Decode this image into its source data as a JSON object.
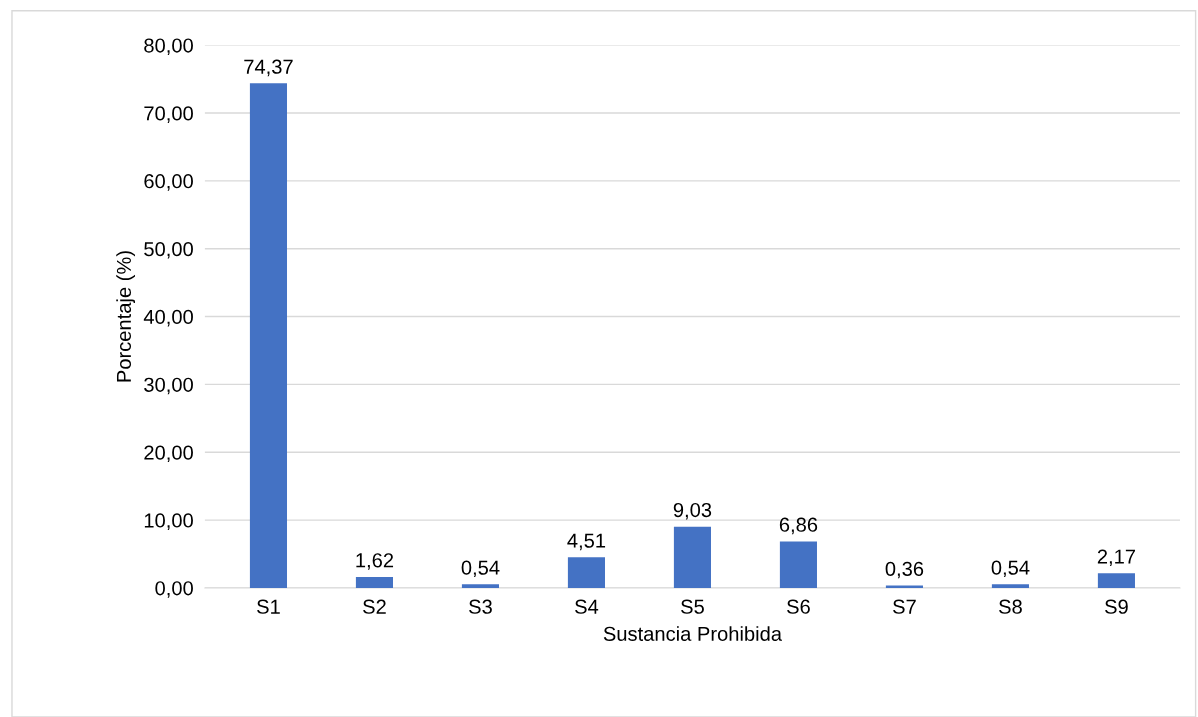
{
  "chart_data": {
    "type": "bar",
    "xlabel": "Sustancia Prohibida",
    "ylabel": "Porcentaje (%)",
    "categories": [
      "S1",
      "S2",
      "S3",
      "S4",
      "S5",
      "S6",
      "S7",
      "S8",
      "S9"
    ],
    "values": [
      74.37,
      1.62,
      0.54,
      4.51,
      9.03,
      6.86,
      0.36,
      0.54,
      2.17
    ],
    "value_labels": [
      "74,37",
      "1,62",
      "0,54",
      "4,51",
      "9,03",
      "6,86",
      "0,36",
      "0,54",
      "2,17"
    ],
    "color": "#4472c4",
    "ylim": [
      0,
      80
    ],
    "yticks": [
      {
        "value": 0,
        "label": "0,00"
      },
      {
        "value": 10,
        "label": "10,00"
      },
      {
        "value": 20,
        "label": "20,00"
      },
      {
        "value": 30,
        "label": "30,00"
      },
      {
        "value": 40,
        "label": "40,00"
      },
      {
        "value": 50,
        "label": "50,00"
      },
      {
        "value": 60,
        "label": "60,00"
      },
      {
        "value": 70,
        "label": "70,00"
      },
      {
        "value": 80,
        "label": "80,00"
      }
    ],
    "grid": "y",
    "legend": false
  }
}
